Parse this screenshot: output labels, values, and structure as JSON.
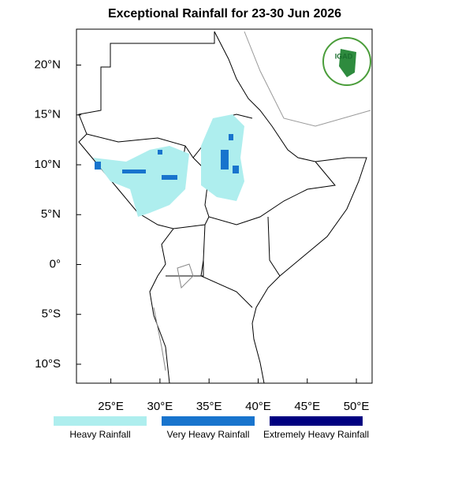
{
  "title": "Exceptional Rainfall for 23-30 Jun 2026",
  "map": {
    "xlim": [
      21.5,
      51.6
    ],
    "ylim": [
      -11.9,
      23.6
    ],
    "xticks": [
      {
        "value": 25,
        "label": "25°E"
      },
      {
        "value": 30,
        "label": "30°E"
      },
      {
        "value": 35,
        "label": "35°E"
      },
      {
        "value": 40,
        "label": "40°E"
      },
      {
        "value": 45,
        "label": "45°E"
      },
      {
        "value": 50,
        "label": "50°E"
      }
    ],
    "yticks": [
      {
        "value": 20,
        "label": "20°N"
      },
      {
        "value": 15,
        "label": "15°N"
      },
      {
        "value": 10,
        "label": "10°N"
      },
      {
        "value": 5,
        "label": "5°N"
      },
      {
        "value": 0,
        "label": "0°"
      },
      {
        "value": -5,
        "label": "5°S"
      },
      {
        "value": -10,
        "label": "10°S"
      }
    ]
  },
  "legend": [
    {
      "label": "Heavy Rainfall",
      "color": "#aeeeee"
    },
    {
      "label": "Very Heavy Rainfall",
      "color": "#1874cd"
    },
    {
      "label": "Extremely Heavy Rainfall",
      "color": "#000080"
    }
  ],
  "logo": {
    "text": "IGAD"
  }
}
